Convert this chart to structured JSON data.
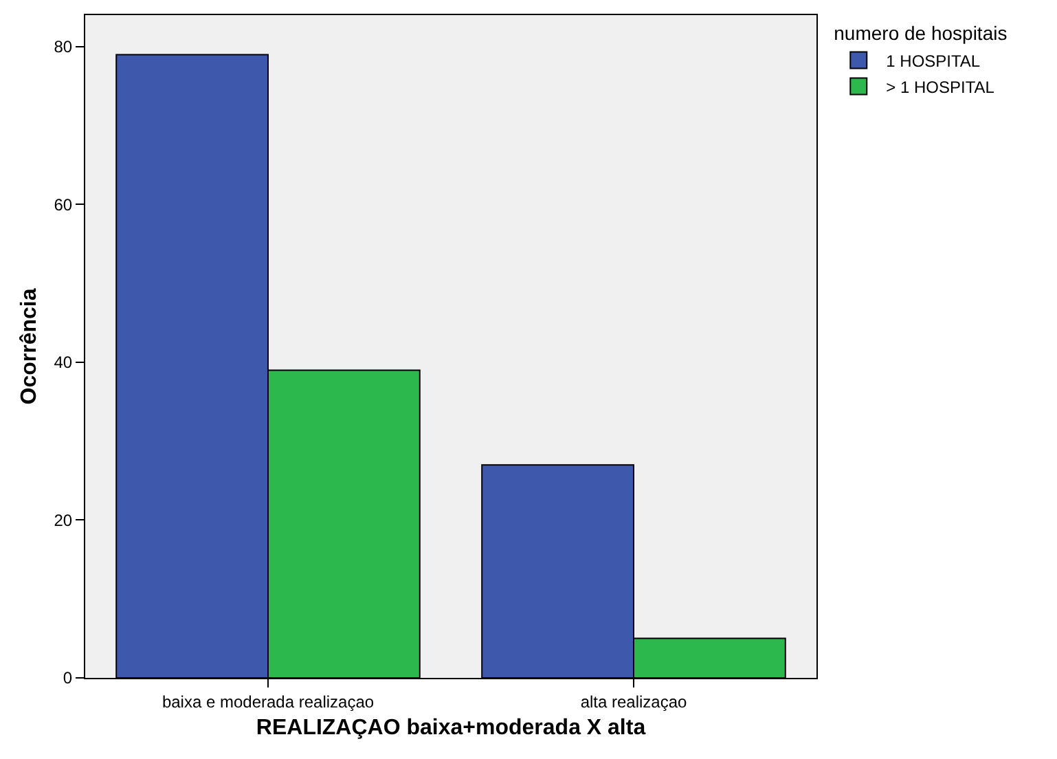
{
  "chart_data": {
    "type": "bar",
    "xlabel": "REALIZAÇAO baixa+moderada X alta",
    "ylabel": "Ocorrência",
    "legend_title": "numero de hospitais",
    "categories": [
      "baixa e moderada realizaçao",
      "alta realizaçao"
    ],
    "series": [
      {
        "name": "1 HOSPITAL",
        "color": "#3e58ac",
        "values": [
          79,
          27
        ]
      },
      {
        "name": "> 1 HOSPITAL",
        "color": "#2db84d",
        "values": [
          39,
          5
        ]
      }
    ],
    "ylim": [
      0,
      84
    ],
    "yticks": [
      0,
      20,
      40,
      60,
      80
    ],
    "grid": false,
    "legend": "top right"
  }
}
